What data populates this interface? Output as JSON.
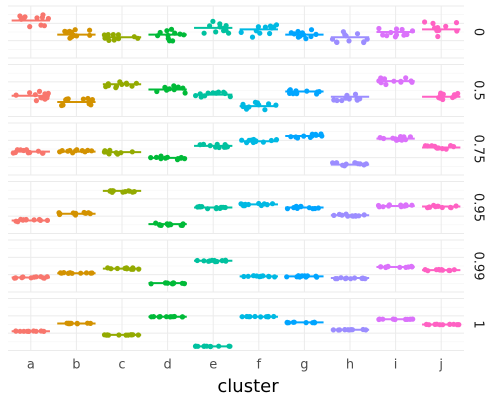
{
  "chart_data": {
    "type": "scatter",
    "subtype": "faceted jitter strip plot with median bars",
    "xlabel": "cluster",
    "ylabel": "",
    "categories": [
      "a",
      "b",
      "c",
      "d",
      "e",
      "f",
      "g",
      "h",
      "i",
      "j"
    ],
    "facets": [
      "0",
      "0.5",
      "0.75",
      "0.95",
      "0.99",
      "1"
    ],
    "facet_strip_position": "right",
    "free_y_scales": true,
    "y_ticks_shown": false,
    "grid": true,
    "legend": "none",
    "colors": [
      "#F8766D",
      "#D39200",
      "#93AA00",
      "#00BA38",
      "#00C19F",
      "#00B9E3",
      "#00A5FF",
      "#9C8DFF",
      "#DB72FB",
      "#FF61C3"
    ],
    "medians": [
      [
        0.72,
        0.45,
        0.4,
        0.45,
        0.58,
        0.55,
        0.45,
        0.4,
        0.5,
        0.55
      ],
      [
        0.4,
        0.28,
        0.62,
        0.52,
        0.42,
        0.2,
        0.48,
        0.38,
        0.68,
        0.38
      ],
      [
        0.45,
        0.45,
        0.44,
        0.33,
        0.56,
        0.65,
        0.75,
        0.2,
        0.7,
        0.53
      ],
      [
        0.25,
        0.38,
        0.82,
        0.18,
        0.5,
        0.56,
        0.5,
        0.35,
        0.53,
        0.52
      ],
      [
        0.28,
        0.36,
        0.45,
        0.17,
        0.6,
        0.3,
        0.3,
        0.27,
        0.48,
        0.42
      ],
      [
        0.37,
        0.52,
        0.3,
        0.65,
        0.08,
        0.65,
        0.54,
        0.4,
        0.6,
        0.5
      ]
    ],
    "spread": [
      [
        0.3,
        0.2,
        0.25,
        0.25,
        0.25,
        0.3,
        0.2,
        0.25,
        0.25,
        0.3
      ],
      [
        0.2,
        0.2,
        0.15,
        0.15,
        0.1,
        0.15,
        0.1,
        0.15,
        0.15,
        0.15
      ],
      [
        0.08,
        0.08,
        0.08,
        0.08,
        0.08,
        0.08,
        0.08,
        0.08,
        0.08,
        0.08
      ],
      [
        0.05,
        0.05,
        0.06,
        0.05,
        0.05,
        0.05,
        0.05,
        0.05,
        0.05,
        0.05
      ],
      [
        0.03,
        0.03,
        0.03,
        0.03,
        0.03,
        0.03,
        0.03,
        0.03,
        0.03,
        0.03
      ],
      [
        0.01,
        0.01,
        0.01,
        0.01,
        0.01,
        0.01,
        0.01,
        0.01,
        0.01,
        0.01
      ]
    ],
    "points_per_group": 11
  }
}
